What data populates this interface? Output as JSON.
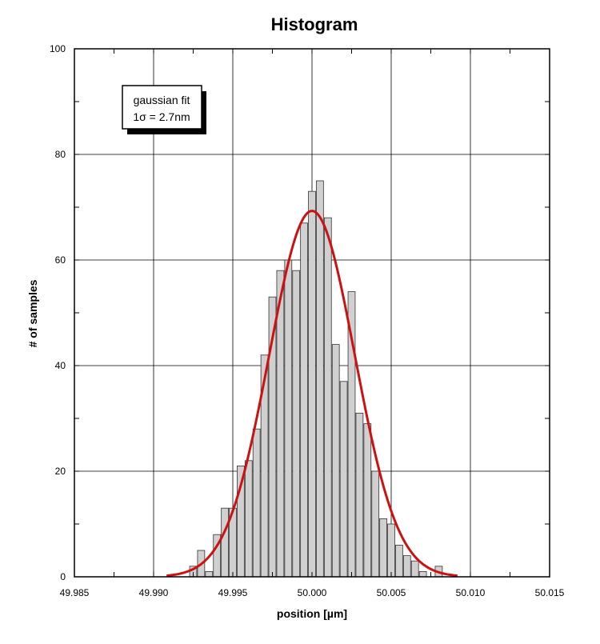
{
  "chart_data": {
    "type": "bar",
    "title": "Histogram",
    "xlabel": "position  [µm]",
    "ylabel": "# of samples",
    "xlim": [
      49.985,
      50.015
    ],
    "ylim": [
      0,
      100
    ],
    "x_ticks": [
      "49.985",
      "49.990",
      "49.995",
      "50.000",
      "50.005",
      "50.010",
      "50.015"
    ],
    "y_ticks": [
      "0",
      "20",
      "40",
      "60",
      "80",
      "100"
    ],
    "grid": true,
    "legend_box": {
      "line1": "gaussian fit",
      "line2": "1σ = 2.7nm"
    },
    "bin_width": 0.0005,
    "bins": [
      {
        "x": 49.9925,
        "y": 2
      },
      {
        "x": 49.993,
        "y": 5
      },
      {
        "x": 49.9935,
        "y": 1
      },
      {
        "x": 49.994,
        "y": 8
      },
      {
        "x": 49.9945,
        "y": 13
      },
      {
        "x": 49.995,
        "y": 13
      },
      {
        "x": 49.9955,
        "y": 21
      },
      {
        "x": 49.996,
        "y": 22
      },
      {
        "x": 49.9965,
        "y": 28
      },
      {
        "x": 49.997,
        "y": 42
      },
      {
        "x": 49.9975,
        "y": 53
      },
      {
        "x": 49.998,
        "y": 58
      },
      {
        "x": 49.9985,
        "y": 60
      },
      {
        "x": 49.999,
        "y": 58
      },
      {
        "x": 49.9995,
        "y": 67
      },
      {
        "x": 50.0,
        "y": 73
      },
      {
        "x": 50.0005,
        "y": 75
      },
      {
        "x": 50.001,
        "y": 68
      },
      {
        "x": 50.0015,
        "y": 44
      },
      {
        "x": 50.002,
        "y": 37
      },
      {
        "x": 50.0025,
        "y": 54
      },
      {
        "x": 50.003,
        "y": 31
      },
      {
        "x": 50.0035,
        "y": 29
      },
      {
        "x": 50.004,
        "y": 20
      },
      {
        "x": 50.0045,
        "y": 11
      },
      {
        "x": 50.005,
        "y": 10
      },
      {
        "x": 50.0055,
        "y": 6
      },
      {
        "x": 50.006,
        "y": 4
      },
      {
        "x": 50.0065,
        "y": 3
      },
      {
        "x": 50.007,
        "y": 1
      },
      {
        "x": 50.008,
        "y": 2
      }
    ],
    "fit": {
      "type": "gaussian",
      "mean": 50.0,
      "sigma": 0.0027,
      "amplitude": 69.3,
      "color": "#cc1111"
    },
    "colors": {
      "bar_fill": "#d0d0d0",
      "bar_stroke": "#333333",
      "fit_line": "#cc1111",
      "grid": "#000000"
    }
  }
}
